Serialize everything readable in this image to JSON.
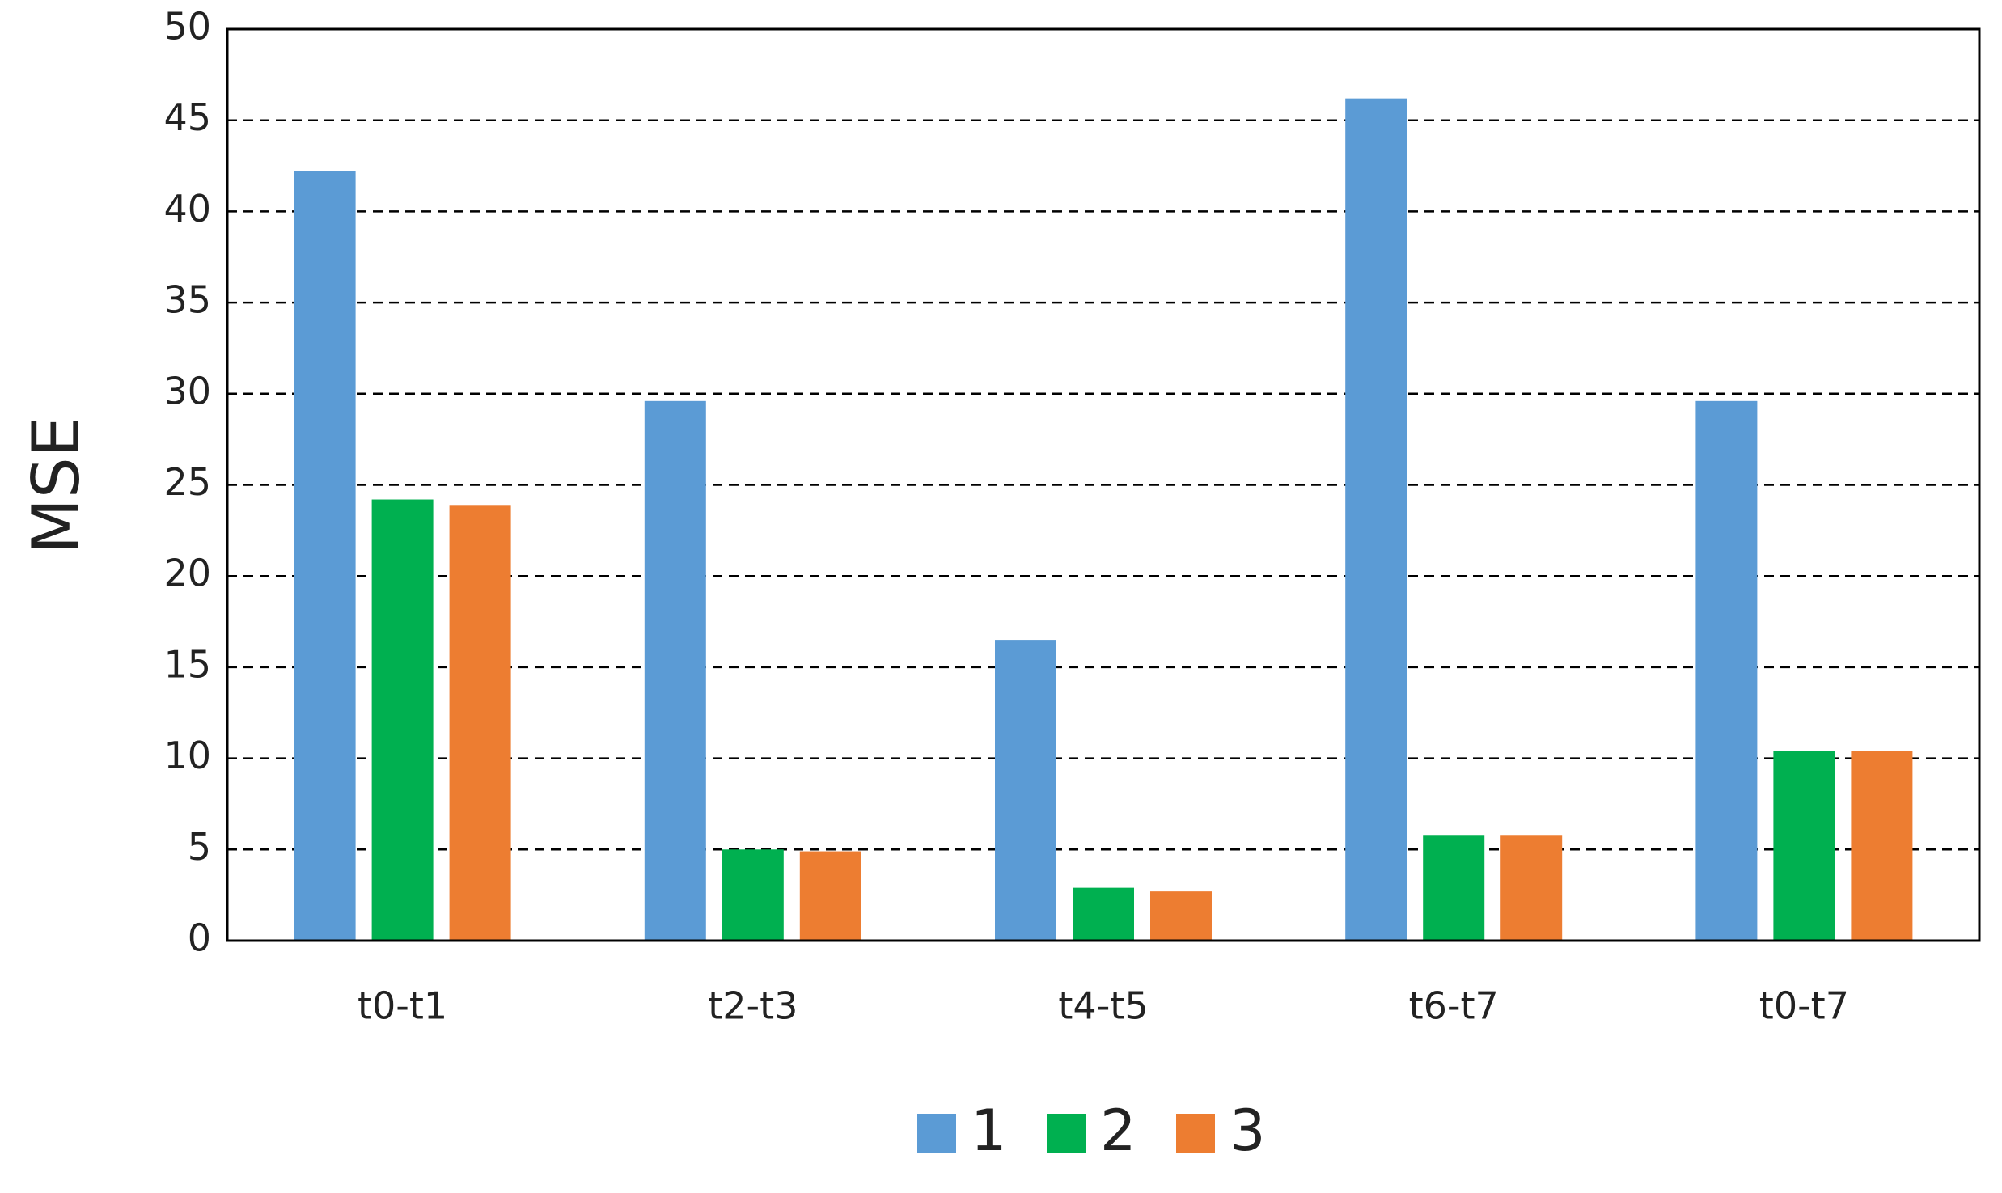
{
  "chart_data": {
    "type": "bar",
    "y_label": "MSE",
    "categories": [
      "t0-t1",
      "t2-t3",
      "t4-t5",
      "t6-t7",
      "t0-t7"
    ],
    "series": [
      {
        "name": "1",
        "color": "#5b9bd5",
        "values": [
          42.2,
          29.6,
          16.5,
          46.2,
          29.6
        ]
      },
      {
        "name": "2",
        "color": "#00b050",
        "values": [
          24.2,
          5.0,
          2.9,
          5.8,
          10.4
        ]
      },
      {
        "name": "3",
        "color": "#ed7d31",
        "values": [
          23.9,
          4.9,
          2.7,
          5.8,
          10.4
        ]
      }
    ],
    "ylim": [
      0,
      50
    ],
    "yticks": [
      0,
      5,
      10,
      15,
      20,
      25,
      30,
      35,
      40,
      45,
      50
    ],
    "grid": true,
    "legend": "bottom"
  }
}
